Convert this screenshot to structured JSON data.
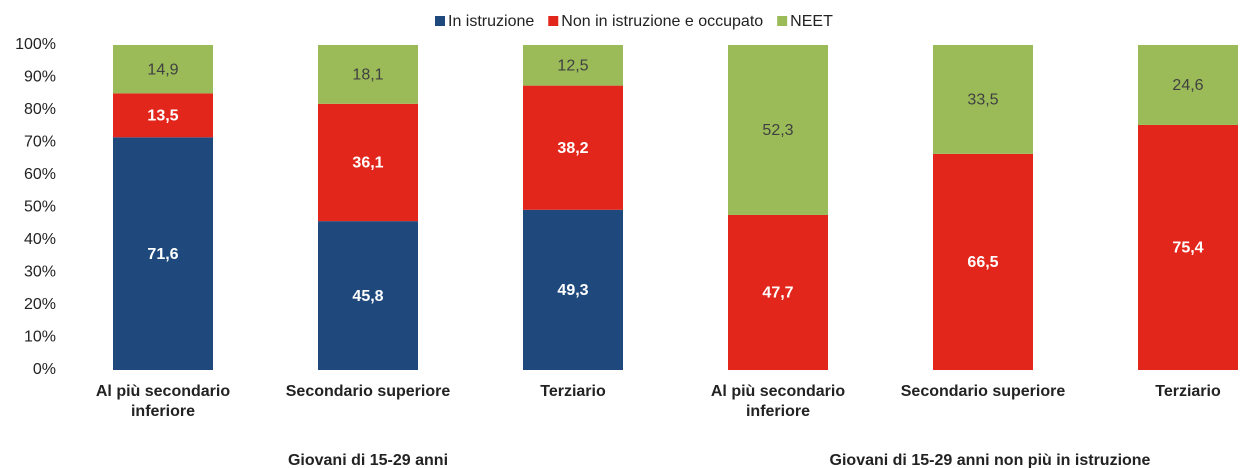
{
  "chart_data": {
    "type": "stacked_bar",
    "categories": [
      "Al più secondario inferiore",
      "Secondario superiore",
      "Terziario",
      "Al più secondario inferiore",
      "Secondario superiore",
      "Terziario"
    ],
    "group_labels": [
      "Giovani di 15-29 anni",
      "Giovani di 15-29 anni non più in istruzione"
    ],
    "series": [
      {
        "name": "In istruzione",
        "color": "#1f497d",
        "values": [
          71.6,
          45.8,
          49.3,
          null,
          null,
          null
        ],
        "value_labels": [
          "71,6",
          "45,8",
          "49,3",
          null,
          null,
          null
        ]
      },
      {
        "name": "Non in istruzione e occupato",
        "color": "#e3261b",
        "values": [
          13.5,
          36.1,
          38.2,
          47.7,
          66.5,
          75.4
        ],
        "value_labels": [
          "13,5",
          "36,1",
          "38,2",
          "47,7",
          "66,5",
          "75,4"
        ]
      },
      {
        "name": "NEET",
        "color": "#9bbb59",
        "values": [
          14.9,
          18.1,
          12.5,
          52.3,
          33.5,
          24.6
        ],
        "value_labels": [
          "14,9",
          "18,1",
          "12,5",
          "52,3",
          "33,5",
          "24,6"
        ]
      }
    ],
    "ylim": [
      0,
      100
    ],
    "yticks": [
      {
        "value": 0,
        "label": "0%"
      },
      {
        "value": 10,
        "label": "10%"
      },
      {
        "value": 20,
        "label": "20%"
      },
      {
        "value": 30,
        "label": "30%"
      },
      {
        "value": 40,
        "label": "40%"
      },
      {
        "value": 50,
        "label": "50%"
      },
      {
        "value": 60,
        "label": "60%"
      },
      {
        "value": 70,
        "label": "70%"
      },
      {
        "value": 80,
        "label": "80%"
      },
      {
        "value": 90,
        "label": "90%"
      },
      {
        "value": 100,
        "label": "100%"
      }
    ],
    "legend": "top"
  }
}
